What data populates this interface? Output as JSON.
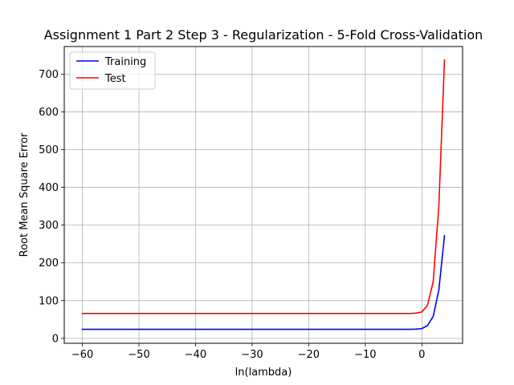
{
  "chart_data": {
    "type": "line",
    "title": "Assignment 1 Part 2 Step 3 - Regularization - 5-Fold Cross-Validation",
    "xlabel": "ln(lambda)",
    "ylabel": "Root Mean Square Error",
    "xlim": [
      -63.2,
      7.2
    ],
    "ylim": [
      -13,
      773
    ],
    "xticks": [
      -60,
      -50,
      -40,
      -30,
      -20,
      -10,
      0
    ],
    "yticks": [
      0,
      100,
      200,
      300,
      400,
      500,
      600,
      700
    ],
    "xtick_labels": [
      "−60",
      "−50",
      "−40",
      "−30",
      "−20",
      "−10",
      "0"
    ],
    "ytick_labels": [
      "0",
      "100",
      "200",
      "300",
      "400",
      "500",
      "600",
      "700"
    ],
    "grid": true,
    "legend_position": "top-left",
    "series": [
      {
        "name": "Training",
        "color": "#0000ff",
        "x": [
          -60,
          -50,
          -40,
          -30,
          -20,
          -10,
          -2,
          -1,
          0,
          1,
          2,
          3,
          4
        ],
        "y": [
          24,
          24,
          24,
          24,
          24,
          24,
          24,
          24.5,
          26,
          34,
          58,
          128,
          272
        ]
      },
      {
        "name": "Test",
        "color": "#ff0000",
        "x": [
          -60,
          -50,
          -40,
          -30,
          -20,
          -10,
          -2,
          -1,
          0,
          1,
          2,
          3,
          4
        ],
        "y": [
          66,
          66,
          66,
          66,
          66,
          66,
          66,
          67,
          70,
          88,
          150,
          350,
          737
        ]
      }
    ]
  }
}
